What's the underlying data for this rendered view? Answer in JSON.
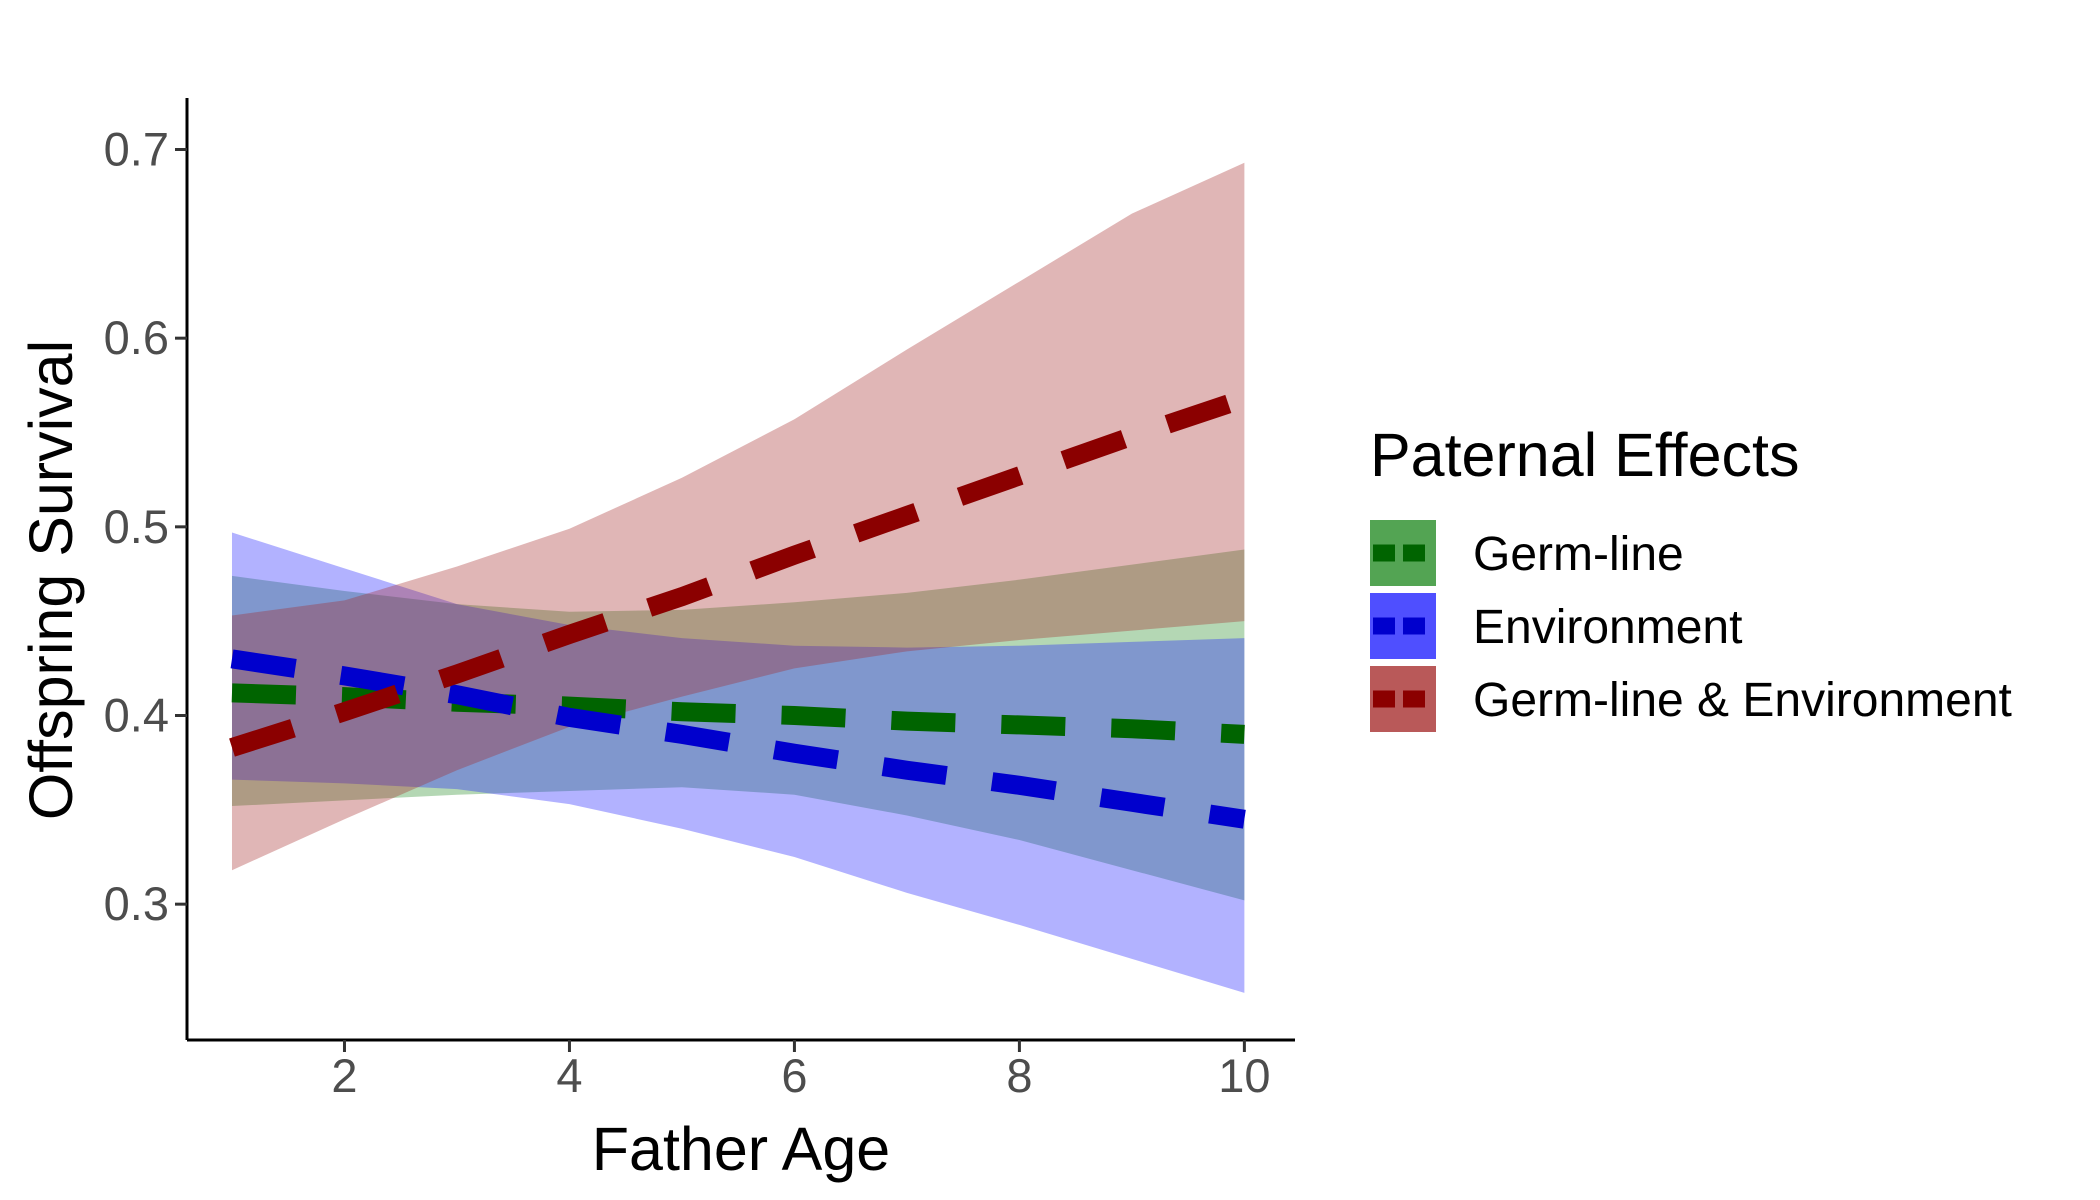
{
  "chart_data": {
    "type": "line",
    "xlabel": "Father Age",
    "ylabel": "Offspring Survival",
    "xlim": [
      0.6,
      10.45
    ],
    "ylim": [
      0.228,
      0.722
    ],
    "x_ticks": [
      2,
      4,
      6,
      8,
      10
    ],
    "x_tick_labels": [
      "2",
      "4",
      "6",
      "8",
      "10"
    ],
    "y_ticks": [
      0.3,
      0.4,
      0.5,
      0.6,
      0.7
    ],
    "y_tick_labels": [
      "0.3",
      "0.4",
      "0.5",
      "0.6",
      "0.7"
    ],
    "grid": false,
    "legend": {
      "title": "Paternal Effects",
      "position": "right"
    },
    "series": [
      {
        "name": "Germ-line",
        "line_color": "#006400",
        "ribbon_color": "#228B22",
        "x": [
          1,
          2,
          3,
          4,
          5,
          6,
          7,
          8,
          9,
          10
        ],
        "values": [
          0.412,
          0.41,
          0.407,
          0.405,
          0.402,
          0.4,
          0.397,
          0.395,
          0.393,
          0.39
        ],
        "lower": [
          0.352,
          0.355,
          0.358,
          0.36,
          0.362,
          0.358,
          0.347,
          0.334,
          0.318,
          0.302
        ],
        "upper": [
          0.474,
          0.466,
          0.459,
          0.455,
          0.456,
          0.46,
          0.465,
          0.472,
          0.48,
          0.488
        ]
      },
      {
        "name": "Environment",
        "line_color": "#0000CD",
        "ribbon_color": "#1E1EFF",
        "x": [
          1,
          2,
          3,
          4,
          5,
          6,
          7,
          8,
          9,
          10
        ],
        "values": [
          0.43,
          0.421,
          0.411,
          0.399,
          0.39,
          0.38,
          0.371,
          0.363,
          0.354,
          0.345
        ],
        "lower": [
          0.366,
          0.364,
          0.361,
          0.353,
          0.34,
          0.325,
          0.306,
          0.289,
          0.271,
          0.253
        ],
        "upper": [
          0.497,
          0.478,
          0.459,
          0.448,
          0.441,
          0.437,
          0.436,
          0.437,
          0.439,
          0.441
        ]
      },
      {
        "name": "Germ-line & Environment",
        "line_color": "#8B0000",
        "ribbon_color": "#A52A2A",
        "x": [
          1,
          2,
          3,
          4,
          5,
          6,
          7,
          8,
          9,
          10
        ],
        "values": [
          0.383,
          0.402,
          0.422,
          0.443,
          0.463,
          0.485,
          0.506,
          0.527,
          0.548,
          0.568
        ],
        "lower": [
          0.318,
          0.345,
          0.371,
          0.394,
          0.41,
          0.425,
          0.434,
          0.44,
          0.445,
          0.45
        ],
        "upper": [
          0.453,
          0.461,
          0.479,
          0.499,
          0.526,
          0.557,
          0.594,
          0.63,
          0.666,
          0.693
        ]
      }
    ]
  }
}
